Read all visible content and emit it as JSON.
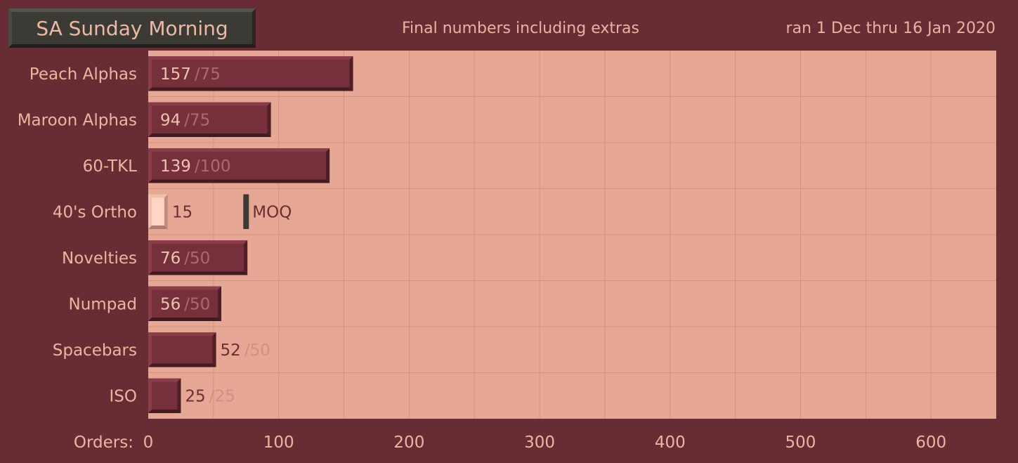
{
  "header": {
    "title": "SA Sunday Morning",
    "subtitle": "Final numbers including extras",
    "date_range": "ran 1 Dec thru 16 Jan 2020"
  },
  "colors": {
    "background": "#682c35",
    "plot_area": "#e6a895",
    "bar_fill": "#76303c",
    "below_moq_fill": "#ffd5c5",
    "moq_marker": "#3b3a35"
  },
  "chart_data": {
    "type": "bar",
    "orientation": "horizontal",
    "title": "SA Sunday Morning",
    "subtitle": "Final numbers including extras",
    "xlabel": "Orders:",
    "xlim": [
      0,
      650
    ],
    "xticks": [
      0,
      100,
      200,
      300,
      400,
      500,
      600
    ],
    "grid": true,
    "categories": [
      "Peach Alphas",
      "Maroon Alphas",
      "60-TKL",
      "40's Ortho",
      "Novelties",
      "Numpad",
      "Spacebars",
      "ISO"
    ],
    "values": [
      157,
      94,
      139,
      15,
      76,
      56,
      52,
      25
    ],
    "targets": [
      75,
      75,
      100,
      75,
      50,
      50,
      50,
      25
    ],
    "target_labels": [
      "/75",
      "/75",
      "/100",
      "",
      "/50",
      "/50",
      "/50",
      "/25"
    ],
    "annotations": [
      {
        "category": "40's Ortho",
        "x": 75,
        "text": "MOQ"
      }
    ]
  }
}
